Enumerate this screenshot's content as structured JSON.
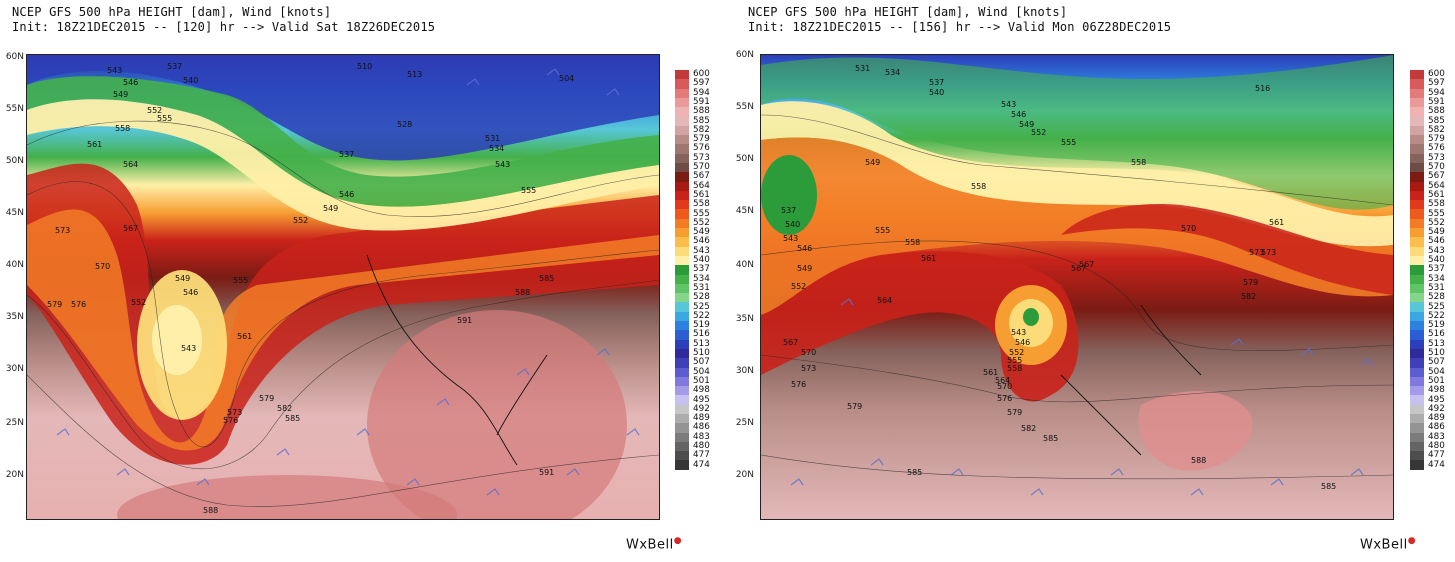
{
  "colorbar": {
    "levels": [
      "600",
      "597",
      "594",
      "591",
      "588",
      "585",
      "582",
      "579",
      "576",
      "573",
      "570",
      "567",
      "564",
      "561",
      "558",
      "555",
      "552",
      "549",
      "546",
      "543",
      "540",
      "537",
      "534",
      "531",
      "528",
      "525",
      "522",
      "519",
      "516",
      "513",
      "510",
      "507",
      "504",
      "501",
      "498",
      "495",
      "492",
      "489",
      "486",
      "483",
      "480",
      "477",
      "474"
    ],
    "colors": [
      "#c33a3a",
      "#d85a5a",
      "#e37b7b",
      "#eb9a9a",
      "#f0b2b2",
      "#e4b8b8",
      "#d1a3a3",
      "#b88c86",
      "#9e7770",
      "#86625c",
      "#6e4b45",
      "#7a1c14",
      "#a71a12",
      "#c9221a",
      "#e2381c",
      "#ec5a1e",
      "#f27c26",
      "#f79e33",
      "#fbbd4c",
      "#fcdc79",
      "#ffefa8",
      "#2c9b3a",
      "#44b04a",
      "#5fc463",
      "#85d58a",
      "#57c7d8",
      "#3aa6e2",
      "#2d82df",
      "#2a5ed2",
      "#2d3eb9",
      "#2f2a98",
      "#3f3fb8",
      "#5c5cd0",
      "#8179de",
      "#a39ae8",
      "#c7c1f0",
      "#c6c6c6",
      "#adadad",
      "#949494",
      "#7c7c7c",
      "#646464",
      "#4d4d4d",
      "#363636"
    ]
  },
  "panels": [
    {
      "title": "NCEP GFS 500 hPa HEIGHT [dam], Wind [knots]",
      "init": "Init: 18Z21DEC2015 -- [120] hr --> Valid Sat 18Z26DEC2015",
      "lat_labels": [
        "60N",
        "55N",
        "50N",
        "45N",
        "40N",
        "35N",
        "30N",
        "25N",
        "20N"
      ],
      "contour_labels": [
        "543",
        "546",
        "549",
        "552",
        "555",
        "558",
        "561",
        "564",
        "537",
        "540",
        "510",
        "513",
        "504",
        "528",
        "531",
        "534",
        "537",
        "543",
        "555",
        "549",
        "546",
        "552",
        "573",
        "567",
        "570",
        "579",
        "576",
        "549",
        "546",
        "543",
        "552",
        "555",
        "585",
        "588",
        "591",
        "591",
        "588",
        "573",
        "576",
        "579",
        "582",
        "585",
        "561"
      ],
      "watermark": "WxBell"
    },
    {
      "title": "NCEP GFS 500 hPa HEIGHT [dam], Wind [knots]",
      "init": "Init: 18Z21DEC2015 -- [156] hr --> Valid Mon 06Z28DEC2015",
      "lat_labels": [
        "60N",
        "55N",
        "50N",
        "45N",
        "40N",
        "35N",
        "30N",
        "25N",
        "20N"
      ],
      "contour_labels": [
        "531",
        "534",
        "537",
        "540",
        "543",
        "546",
        "549",
        "552",
        "555",
        "558",
        "516",
        "537",
        "540",
        "543",
        "546",
        "549",
        "552",
        "555",
        "558",
        "561",
        "564",
        "567",
        "570",
        "573",
        "576",
        "579",
        "543",
        "546",
        "552",
        "555",
        "558",
        "561",
        "564",
        "567",
        "570",
        "570",
        "573",
        "576",
        "579",
        "582",
        "585",
        "588",
        "585",
        "573",
        "579",
        "582",
        "585",
        "558",
        "549",
        "561",
        "567"
      ],
      "watermark": "WxBell"
    }
  ]
}
